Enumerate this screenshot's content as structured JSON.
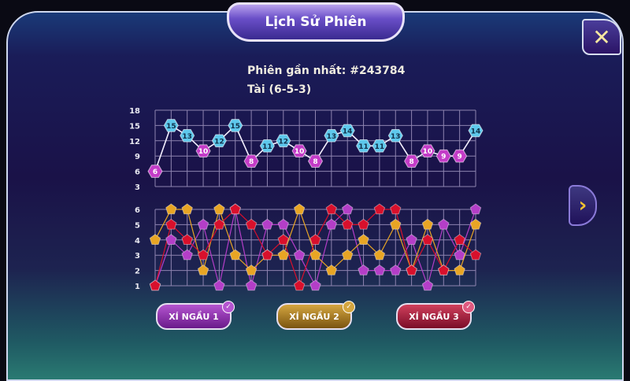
{
  "header": {
    "title": "Lịch Sử Phiên",
    "close_icon": "close-icon",
    "next_icon": "chevron-right-icon"
  },
  "info": {
    "latest_session": "Phiên gần nhất: #243784",
    "result": "Tài (6-5-3)"
  },
  "colors": {
    "tai": "#5ec8ec",
    "xiu": "#c43cc8",
    "dice1": "#b43ec8",
    "dice2": "#e8a524",
    "dice3": "#d8102c"
  },
  "buttons": [
    {
      "label": "XÍ NGẦU 1",
      "checked": true,
      "color": "#8a2aa8"
    },
    {
      "label": "XÍ NGẦU 2",
      "checked": true,
      "color": "#a8781c"
    },
    {
      "label": "XÍ NGẦU 3",
      "checked": true,
      "color": "#a0183c"
    }
  ],
  "chart_data": [
    {
      "type": "line",
      "ylim": [
        3,
        18
      ],
      "yticks": [
        "18",
        "15",
        "12",
        "9",
        "6",
        "3"
      ],
      "grid": true,
      "values": [
        6,
        15,
        13,
        10,
        12,
        15,
        8,
        11,
        12,
        10,
        8,
        13,
        14,
        11,
        11,
        13,
        8,
        10,
        9,
        9,
        14
      ]
    },
    {
      "type": "line",
      "ylim": [
        1,
        6
      ],
      "yticks": [
        "6",
        "5",
        "4",
        "3",
        "2",
        "1"
      ],
      "grid": true,
      "series": [
        {
          "name": "XÍ NGẦU 1",
          "values": [
            1,
            4,
            3,
            5,
            1,
            6,
            1,
            5,
            5,
            3,
            1,
            5,
            6,
            2,
            2,
            2,
            4,
            1,
            5,
            3,
            6
          ]
        },
        {
          "name": "XÍ NGẦU 2",
          "values": [
            4,
            6,
            6,
            2,
            6,
            3,
            2,
            3,
            3,
            6,
            3,
            2,
            3,
            4,
            3,
            5,
            2,
            5,
            2,
            2,
            5
          ]
        },
        {
          "name": "XÍ NGẦU 3",
          "values": [
            1,
            5,
            4,
            3,
            5,
            6,
            5,
            3,
            4,
            1,
            4,
            6,
            5,
            5,
            6,
            6,
            2,
            4,
            2,
            4,
            3
          ]
        }
      ]
    }
  ]
}
